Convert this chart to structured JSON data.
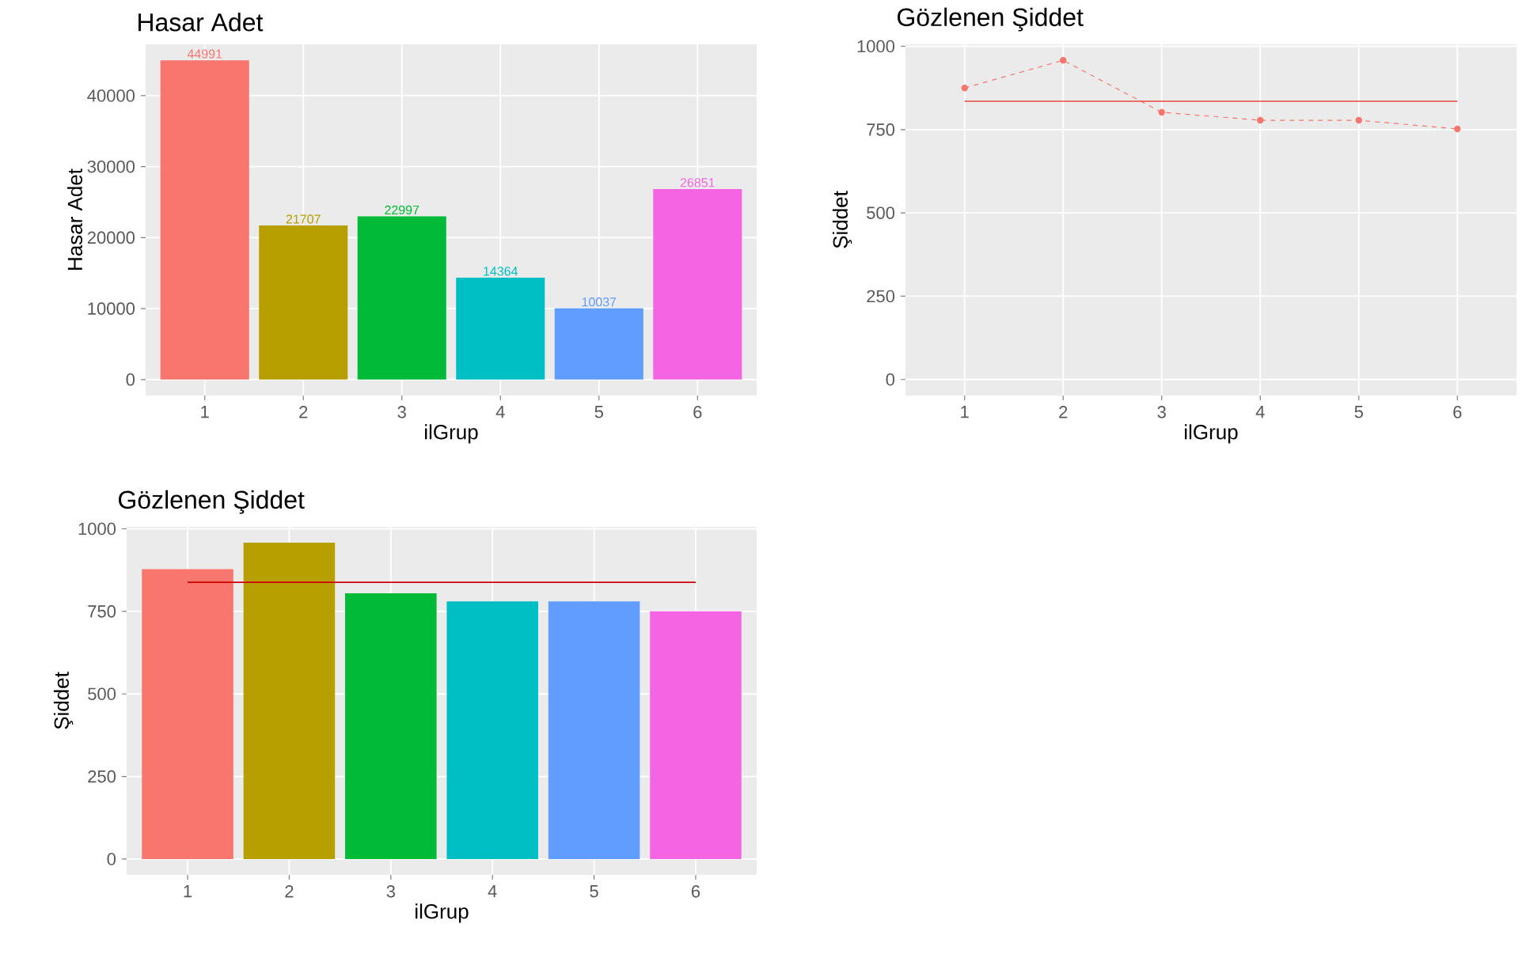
{
  "chart_data": [
    {
      "type": "bar",
      "title": "Hasar Adet",
      "xlabel": "ilGrup",
      "ylabel": "Hasar Adet",
      "categories": [
        "1",
        "2",
        "3",
        "4",
        "5",
        "6"
      ],
      "values": [
        44991,
        21707,
        22997,
        14364,
        10037,
        26851
      ],
      "colors": [
        "#F8766D",
        "#B79F00",
        "#00BA38",
        "#00BFC4",
        "#619CFF",
        "#F564E3"
      ],
      "data_labels": true,
      "ylim": [
        -2250,
        47240
      ],
      "yticks": [
        0,
        10000,
        20000,
        30000,
        40000
      ],
      "grid": true
    },
    {
      "type": "line",
      "title": "Gözlenen Şiddet",
      "xlabel": "ilGrup",
      "ylabel": "Şiddet",
      "categories": [
        "1",
        "2",
        "3",
        "4",
        "5",
        "6"
      ],
      "series": [
        {
          "color": "#F8766D",
          "values": [
            875,
            958,
            802,
            778,
            778,
            752
          ]
        }
      ],
      "marker": "circle",
      "line_style": "dashed",
      "ref_lines": [
        {
          "axis": "y",
          "value": 835,
          "color": "#E8483F"
        }
      ],
      "ylim": [
        -48,
        1006
      ],
      "yticks": [
        0,
        250,
        500,
        750,
        1000
      ],
      "grid": true
    },
    {
      "type": "bar",
      "title": "Gözlenen Şiddet",
      "xlabel": "ilGrup",
      "ylabel": "Şiddet",
      "categories": [
        "1",
        "2",
        "3",
        "4",
        "5",
        "6"
      ],
      "values": [
        878,
        958,
        805,
        780,
        780,
        750
      ],
      "colors": [
        "#F8766D",
        "#B79F00",
        "#00BA38",
        "#00BFC4",
        "#619CFF",
        "#F564E3"
      ],
      "ref_lines": [
        {
          "axis": "y",
          "value": 838,
          "color": "#CC0000"
        }
      ],
      "ylim": [
        -48,
        1006
      ],
      "yticks": [
        0,
        250,
        500,
        750,
        1000
      ],
      "grid": true
    }
  ]
}
